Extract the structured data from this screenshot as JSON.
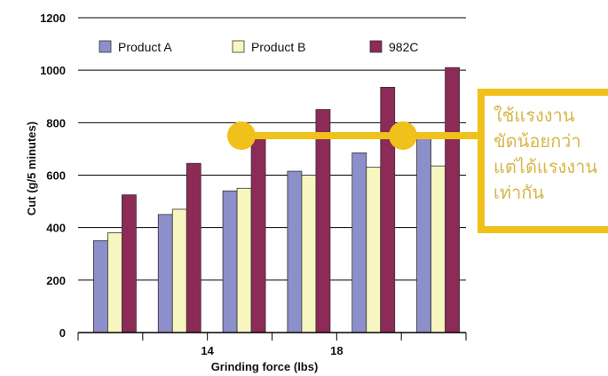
{
  "chart_data": {
    "type": "bar",
    "categories": [
      "",
      "",
      "14",
      "",
      "18",
      ""
    ],
    "series": [
      {
        "name": "Product A",
        "values": [
          350,
          450,
          540,
          615,
          685,
          750
        ]
      },
      {
        "name": "Product B",
        "values": [
          380,
          470,
          550,
          600,
          630,
          635
        ]
      },
      {
        "name": "982C",
        "values": [
          525,
          645,
          750,
          850,
          935,
          1010
        ]
      }
    ],
    "title": "",
    "xlabel": "Grinding force (lbs)",
    "ylabel": "Cut (g/5 minutes)",
    "ylim": [
      0,
      1200
    ],
    "yticks": [
      0,
      200,
      400,
      600,
      800,
      1000,
      1200
    ],
    "grid": true,
    "legend": "top-left"
  },
  "colors": {
    "product_a": "#8c8fc9",
    "product_b": "#f8f6c0",
    "c982": "#8c2a58",
    "highlight": "#f0c11a",
    "callout_text": "#d8b64a"
  },
  "callout": {
    "text": "ใช้แรงงาน\nขัดน้อยกว่า\nแต่ได้แรงงาน\nเท่ากัน"
  }
}
